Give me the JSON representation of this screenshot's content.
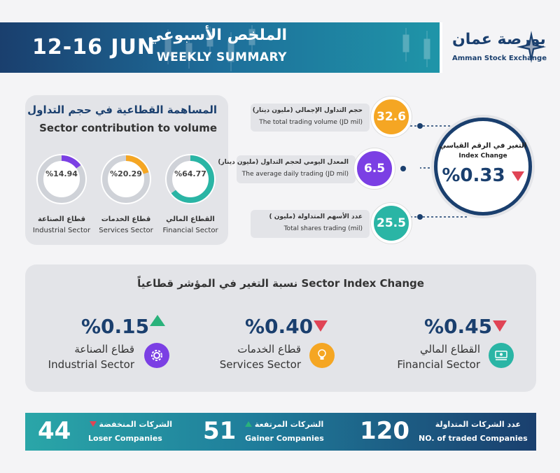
{
  "header": {
    "date_range": "12-16 JUN",
    "title_ar": "الملخص الأسبوعي",
    "title_en": "WEEKLY SUMMARY",
    "logo_ar": "بورصة عمان",
    "logo_en": "Amman Stock Exchange"
  },
  "sector_contribution": {
    "title_ar": "المساهمة القطاعية في حجم التداول",
    "title_en": "Sector contribution to volume",
    "items": [
      {
        "label_ar": "القطاع المالي",
        "label_en": "Financial Sector",
        "value": "%64.77",
        "fraction": 0.6477,
        "color": "#2ab5a5"
      },
      {
        "label_ar": "قطاع الخدمات",
        "label_en": "Services Sector",
        "value": "%20.29",
        "fraction": 0.2029,
        "color": "#f5a623"
      },
      {
        "label_ar": "قطاع الصناعة",
        "label_en": "Industrial Sector",
        "value": "%14.94",
        "fraction": 0.1494,
        "color": "#7b3fe4"
      }
    ]
  },
  "kpis": [
    {
      "label_ar": "حجم التداول الإجمالي (مليون دينار)",
      "label_en": "The total trading volume (JD mil)",
      "value": "32.6",
      "color": "#f5a623"
    },
    {
      "label_ar": "المعدل اليومي لحجم التداول (مليون دينار)",
      "label_en": "The average daily trading (JD mil)",
      "value": "6.5",
      "color": "#7b3fe4"
    },
    {
      "label_ar": "عدد الأسهم المتداولة (مليون )",
      "label_en": "Total shares trading (mil)",
      "value": "25.5",
      "color": "#2ab5a5"
    }
  ],
  "index_change": {
    "label_ar": "التغير في الرقم القياسي",
    "label_en": "Index Change",
    "value": "%0.33",
    "direction": "down"
  },
  "sector_index": {
    "title": "نسبة التغير في المؤشر قطاعياً   Sector Index Change",
    "items": [
      {
        "label_ar": "القطاع المالي",
        "label_en": "Financial Sector",
        "value": "%0.45",
        "direction": "down",
        "icon": "money-hand-icon",
        "color": "#2ab5a5"
      },
      {
        "label_ar": "قطاع الخدمات",
        "label_en": "Services Sector",
        "value": "%0.40",
        "direction": "down",
        "icon": "lightbulb-hand-icon",
        "color": "#f5a623"
      },
      {
        "label_ar": "قطاع الصناعة",
        "label_en": "Industrial Sector",
        "value": "%0.15",
        "direction": "up",
        "icon": "gear-hand-icon",
        "color": "#7b3fe4"
      }
    ]
  },
  "footer": {
    "traded": {
      "label_ar": "عدد الشركات المتداولة",
      "label_en": "NO. of traded Companies",
      "value": "120"
    },
    "gainers": {
      "label_ar": "الشركات المرتفعة",
      "label_en": "Gainer Companies",
      "value": "51"
    },
    "losers": {
      "label_ar": "الشركات المنخفضة",
      "label_en": "Loser Companies",
      "value": "44"
    }
  }
}
